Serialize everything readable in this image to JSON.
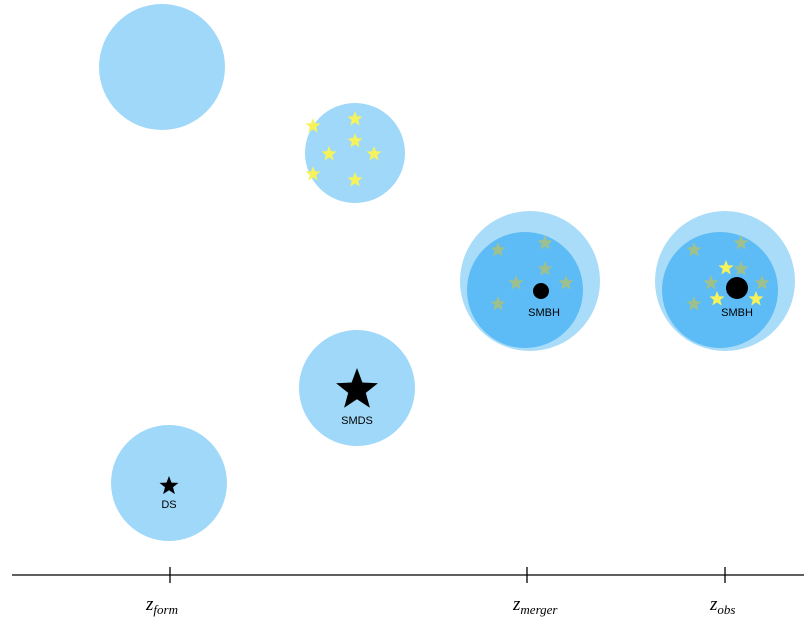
{
  "objects": {
    "ds": "DS",
    "smds": "SMDS",
    "smbh_merger": "SMBH",
    "smbh_obs": "SMBH"
  },
  "axis": {
    "ticks": [
      {
        "symbol": "z",
        "subscript": "form"
      },
      {
        "symbol": "z",
        "subscript": "merger"
      },
      {
        "symbol": "z",
        "subscript": "obs"
      }
    ]
  }
}
